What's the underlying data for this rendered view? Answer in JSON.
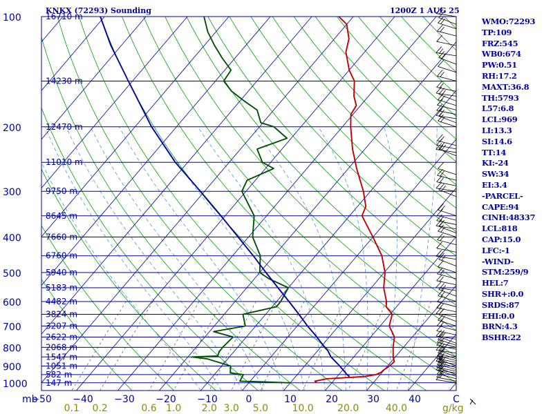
{
  "chart_data": {
    "type": "line",
    "title_left": "KNKX (72293) Sounding",
    "title_right": "1200Z  1 AUG 25",
    "pressure_levels": [
      100,
      200,
      300,
      400,
      500,
      600,
      700,
      800,
      900,
      1000
    ],
    "height_labels": [
      {
        "p": 100,
        "text": "16710 m"
      },
      {
        "p": 150,
        "text": "14230 m"
      },
      {
        "p": 200,
        "text": "12470 m"
      },
      {
        "p": 250,
        "text": "11010 m"
      },
      {
        "p": 300,
        "text": "9750 m"
      },
      {
        "p": 350,
        "text": "8645 m"
      },
      {
        "p": 400,
        "text": "7660 m"
      },
      {
        "p": 450,
        "text": "6760 m"
      },
      {
        "p": 500,
        "text": "5940 m"
      },
      {
        "p": 550,
        "text": "5183 m"
      },
      {
        "p": 600,
        "text": "4482 m"
      },
      {
        "p": 650,
        "text": "3824 m"
      },
      {
        "p": 700,
        "text": "3207 m"
      },
      {
        "p": 750,
        "text": "2622 m"
      },
      {
        "p": 800,
        "text": "2068 m"
      },
      {
        "p": 850,
        "text": "1547 m"
      },
      {
        "p": 900,
        "text": "1051 m"
      },
      {
        "p": 950,
        "text": "582 m"
      },
      {
        "p": 1000,
        "text": "147 m"
      }
    ],
    "x_ticks": [
      {
        "t": -50,
        "text": "−50"
      },
      {
        "t": -40,
        "text": "−40"
      },
      {
        "t": -30,
        "text": "−30"
      },
      {
        "t": -20,
        "text": "−20"
      },
      {
        "t": -10,
        "text": "−10"
      },
      {
        "t": 0,
        "text": "0"
      },
      {
        "t": 10,
        "text": "10"
      },
      {
        "t": 20,
        "text": "20"
      },
      {
        "t": 30,
        "text": "30"
      },
      {
        "t": 40,
        "text": "40"
      },
      {
        "t": 50,
        "text": "C"
      }
    ],
    "mixing_ratio_labels": [
      {
        "w": 0.1,
        "text": "0.1"
      },
      {
        "w": 0.2,
        "text": "0.2"
      },
      {
        "w": 0.6,
        "text": "0.6"
      },
      {
        "w": 1.0,
        "text": "1.0"
      },
      {
        "w": 2.0,
        "text": "2.0"
      },
      {
        "w": 3.0,
        "text": "3.0"
      },
      {
        "w": 5.0,
        "text": "5.0"
      },
      {
        "w": 10.0,
        "text": "10.0"
      },
      {
        "w": 20.0,
        "text": "20.0"
      },
      {
        "w": 40.0,
        "text": "40.0"
      }
    ],
    "y_unit": "mb",
    "x_unit_mixing": "g/kg",
    "series": [
      {
        "name": "temperature",
        "color": "#c00000",
        "points": [
          [
            1000,
            16.4
          ],
          [
            990,
            15.6
          ],
          [
            975,
            18.0
          ],
          [
            962,
            26.5
          ],
          [
            950,
            29.0
          ],
          [
            935,
            29.8
          ],
          [
            925,
            29.8
          ],
          [
            900,
            30.5
          ],
          [
            875,
            30.7
          ],
          [
            850,
            29.5
          ],
          [
            800,
            27.5
          ],
          [
            750,
            25.7
          ],
          [
            700,
            22.2
          ],
          [
            650,
            20.5
          ],
          [
            620,
            17.5
          ],
          [
            600,
            16.5
          ],
          [
            550,
            13.0
          ],
          [
            500,
            10.2
          ],
          [
            450,
            6.0
          ],
          [
            400,
            0.0
          ],
          [
            350,
            -7.0
          ],
          [
            330,
            -8.0
          ],
          [
            300,
            -11.7
          ],
          [
            260,
            -18.0
          ],
          [
            230,
            -23.0
          ],
          [
            200,
            -28.0
          ],
          [
            185,
            -30.5
          ],
          [
            175,
            -31.0
          ],
          [
            165,
            -33.5
          ],
          [
            150,
            -36.5
          ],
          [
            140,
            -40.0
          ],
          [
            125,
            -44.5
          ],
          [
            115,
            -46.5
          ],
          [
            105,
            -50.0
          ],
          [
            100,
            -53.5
          ]
        ]
      },
      {
        "name": "dewpoint",
        "color": "#005000",
        "points": [
          [
            1000,
            9.8
          ],
          [
            995,
            4.0
          ],
          [
            990,
            -2.5
          ],
          [
            950,
            -3.0
          ],
          [
            940,
            -6.5
          ],
          [
            925,
            -7.0
          ],
          [
            900,
            -7.8
          ],
          [
            860,
            -15.0
          ],
          [
            850,
            -19.0
          ],
          [
            845,
            -13.0
          ],
          [
            825,
            -13.5
          ],
          [
            800,
            -13.6
          ],
          [
            750,
            -13.2
          ],
          [
            725,
            -19.0
          ],
          [
            700,
            -12.5
          ],
          [
            650,
            -15.5
          ],
          [
            620,
            -9.0
          ],
          [
            600,
            -9.0
          ],
          [
            550,
            -10.0
          ],
          [
            520,
            -16.5
          ],
          [
            500,
            -20.0
          ],
          [
            450,
            -23.3
          ],
          [
            400,
            -29.0
          ],
          [
            350,
            -33.0
          ],
          [
            300,
            -41.0
          ],
          [
            280,
            -42.0
          ],
          [
            260,
            -38.0
          ],
          [
            250,
            -42.0
          ],
          [
            230,
            -46.0
          ],
          [
            215,
            -41.0
          ],
          [
            200,
            -46.5
          ],
          [
            195,
            -50.5
          ],
          [
            180,
            -54.0
          ],
          [
            170,
            -59.0
          ],
          [
            160,
            -64.0
          ],
          [
            150,
            -68.0
          ],
          [
            140,
            -68.5
          ],
          [
            130,
            -73.0
          ],
          [
            120,
            -77.5
          ],
          [
            110,
            -82.0
          ],
          [
            100,
            -86.0
          ]
        ]
      },
      {
        "name": "parcel",
        "color": "#0000a0",
        "points": [
          [
            962,
            23.0
          ],
          [
            950,
            22.0
          ],
          [
            900,
            18.5
          ],
          [
            850,
            14.5
          ],
          [
            818,
            12.5
          ],
          [
            800,
            11.0
          ],
          [
            750,
            7.0
          ],
          [
            700,
            2.5
          ],
          [
            650,
            -2.0
          ],
          [
            600,
            -7.0
          ],
          [
            550,
            -12.5
          ],
          [
            500,
            -18.5
          ],
          [
            450,
            -25.0
          ],
          [
            400,
            -32.5
          ],
          [
            350,
            -41.0
          ],
          [
            300,
            -51.0
          ],
          [
            250,
            -63.0
          ],
          [
            200,
            -76.0
          ],
          [
            150,
            -91.0
          ],
          [
            120,
            -102.5
          ],
          [
            100,
            -111.0
          ]
        ]
      }
    ],
    "wind_barbs_p": [
      1000,
      990,
      975,
      960,
      950,
      940,
      930,
      920,
      910,
      900,
      890,
      880,
      870,
      860,
      850,
      830,
      810,
      800,
      790,
      780,
      760,
      740,
      720,
      700,
      680,
      660,
      640,
      620,
      600,
      580,
      560,
      540,
      520,
      500,
      480,
      460,
      440,
      420,
      400,
      390,
      380,
      370,
      360,
      350,
      310,
      300,
      290,
      280,
      270,
      240,
      235,
      230,
      225,
      200,
      195,
      190,
      185,
      180,
      175,
      170,
      165,
      160,
      150,
      142,
      135,
      128,
      120,
      113,
      108,
      105,
      100
    ],
    "grid": true
  },
  "indices": [
    "WMO:72293",
    "TP:109",
    "FRZ:545",
    "WB0:674",
    "PW:0.51",
    "RH:17.2",
    "MAXT:36.8",
    "TH:5793",
    "L57:6.8",
    "LCL:969",
    "LI:13.3",
    "SI:14.6",
    "TT:14",
    "KI:-24",
    "SW:34",
    "EI:3.4",
    "-PARCEL-",
    "CAPE:94",
    "CINH:48337",
    "LCL:818",
    "CAP:15.0",
    "LFC:-1",
    "-WIND-",
    "STM:259/9",
    "HEL:7",
    "SHR+:0.0",
    "SRDS:87",
    "EHI:0.0",
    "BRN:4.3",
    "BSHR:22"
  ]
}
